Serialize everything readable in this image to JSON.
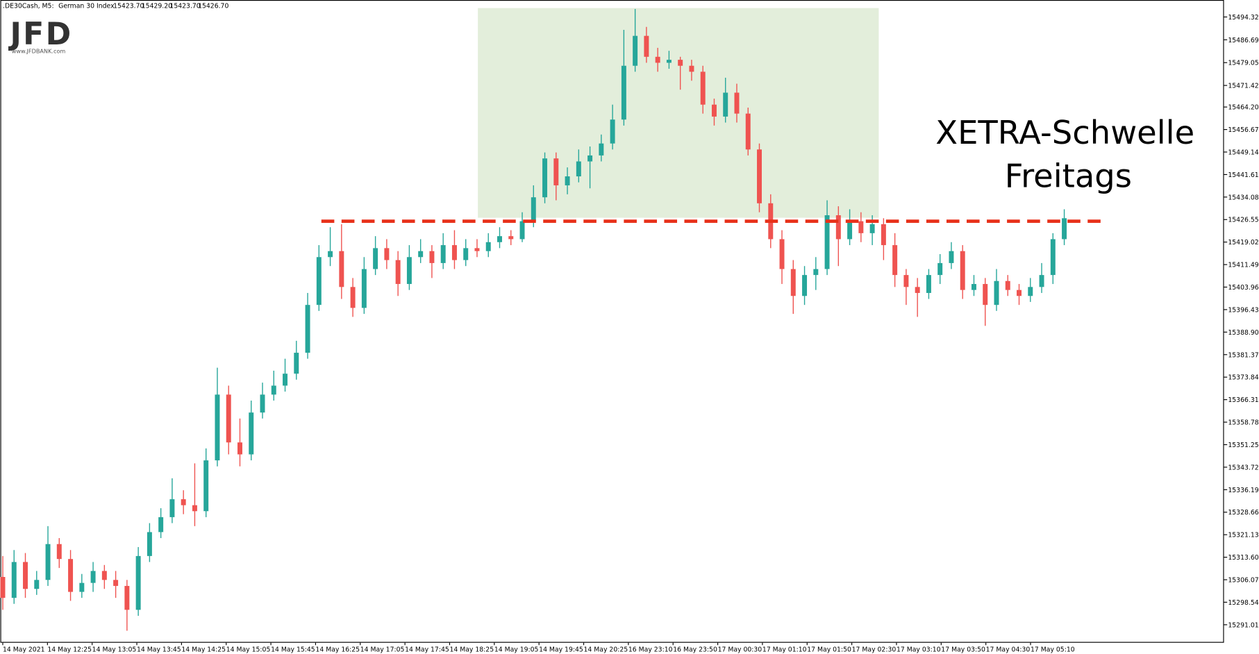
{
  "chart_data": {
    "type": "candlestick",
    "header": {
      "symbol": ".DE30Cash, M5:",
      "name": "German 30 Index",
      "ohlc": [
        "15423.70",
        "15429.20",
        "15423.70",
        "15426.70"
      ]
    },
    "logo": {
      "text": "JFD",
      "url": "www.JFDBANK.com"
    },
    "annotation": [
      "XETRA-Schwelle",
      "Freitags"
    ],
    "level": 15426,
    "level_color": "#e8311a",
    "up_color": "#26a69a",
    "down_color": "#ef5350",
    "ylim": [
      15285,
      15500
    ],
    "yticks": [
      15494.32,
      15486.69,
      15479.05,
      15471.42,
      {
        "value": 15464.2,
        "label": "15464.20"
      },
      15456.67,
      15449.14,
      15441.61,
      15434.08,
      15426.55,
      15419.02,
      15411.49,
      15403.96,
      15396.43,
      {
        "value": 15388.9,
        "label": "15388.90"
      },
      15381.37,
      15373.84,
      15366.31,
      15358.78,
      15351.25,
      15343.72,
      15336.19,
      15328.66,
      15321.13,
      {
        "value": 15313.6,
        "label": "15313.60"
      },
      15306.07,
      15298.54,
      15291.01
    ],
    "x_labels": [
      "14 May 2021",
      "14 May 12:25",
      "14 May 13:05",
      "14 May 13:45",
      "14 May 14:25",
      "14 May 15:05",
      "14 May 15:45",
      "14 May 16:25",
      "14 May 17:05",
      "14 May 17:45",
      "14 May 18:25",
      "14 May 19:05",
      "14 May 19:45",
      "14 May 20:25",
      "16 May 23:10",
      "16 May 23:50",
      "17 May 00:30",
      "17 May 01:10",
      "17 May 01:50",
      "17 May 02:30",
      "17 May 03:10",
      "17 May 03:50",
      "17 May 04:30",
      "17 May 05:10"
    ],
    "candles": [
      [
        15307,
        15314,
        15296,
        15300
      ],
      [
        15300,
        15316,
        15298,
        15312
      ],
      [
        15312,
        15315,
        15300,
        15303
      ],
      [
        15303,
        15309,
        15301,
        15306
      ],
      [
        15306,
        15324,
        15304,
        15318
      ],
      [
        15318,
        15320,
        15310,
        15313
      ],
      [
        15313,
        15316,
        15299,
        15302
      ],
      [
        15302,
        15308,
        15300,
        15305
      ],
      [
        15305,
        15312,
        15302,
        15309
      ],
      [
        15309,
        15311,
        15303,
        15306
      ],
      [
        15306,
        15309,
        15300,
        15304
      ],
      [
        15304,
        15306,
        15289,
        15296
      ],
      [
        15296,
        15317,
        15294,
        15314
      ],
      [
        15314,
        15325,
        15312,
        15322
      ],
      [
        15322,
        15330,
        15320,
        15327
      ],
      [
        15327,
        15340,
        15325,
        15333
      ],
      [
        15333,
        15336,
        15328,
        15331
      ],
      [
        15331,
        15345,
        15324,
        15329
      ],
      [
        15329,
        15350,
        15327,
        15346
      ],
      [
        15346,
        15377,
        15344,
        15368
      ],
      [
        15368,
        15371,
        15348,
        15352
      ],
      [
        15352,
        15360,
        15344,
        15348
      ],
      [
        15348,
        15366,
        15346,
        15362
      ],
      [
        15362,
        15372,
        15360,
        15368
      ],
      [
        15368,
        15376,
        15366,
        15371
      ],
      [
        15371,
        15380,
        15369,
        15375
      ],
      [
        15375,
        15386,
        15373,
        15382
      ],
      [
        15382,
        15402,
        15380,
        15398
      ],
      [
        15398,
        15418,
        15396,
        15414
      ],
      [
        15414,
        15424,
        15411,
        15416
      ],
      [
        15416,
        15425,
        15400,
        15404
      ],
      [
        15404,
        15407,
        15394,
        15397
      ],
      [
        15397,
        15414,
        15395,
        15410
      ],
      [
        15410,
        15421,
        15408,
        15417
      ],
      [
        15417,
        15420,
        15410,
        15413
      ],
      [
        15413,
        15416,
        15401,
        15405
      ],
      [
        15405,
        15418,
        15403,
        15414
      ],
      [
        15414,
        15420,
        15412,
        15416
      ],
      [
        15416,
        15418,
        15407,
        15412
      ],
      [
        15412,
        15422,
        15410,
        15418
      ],
      [
        15418,
        15423,
        15410,
        15413
      ],
      [
        15413,
        15420,
        15411,
        15417
      ],
      [
        15417,
        15420,
        15414,
        15416
      ],
      [
        15416,
        15422,
        15414,
        15419
      ],
      [
        15419,
        15424,
        15417,
        15421
      ],
      [
        15421,
        15423,
        15418,
        15420
      ],
      [
        15420,
        15429,
        15419,
        15426
      ],
      [
        15426,
        15438,
        15424,
        15434
      ],
      [
        15434,
        15449,
        15432,
        15447
      ],
      [
        15447,
        15449,
        15433,
        15438
      ],
      [
        15438,
        15444,
        15435,
        15441
      ],
      [
        15441,
        15450,
        15439,
        15446
      ],
      [
        15446,
        15451,
        15437,
        15448
      ],
      [
        15448,
        15455,
        15446,
        15452
      ],
      [
        15452,
        15465,
        15450,
        15460
      ],
      [
        15460,
        15490,
        15458,
        15478
      ],
      [
        15478,
        15497,
        15476,
        15488
      ],
      [
        15488,
        15491,
        15479,
        15481
      ],
      [
        15481,
        15484,
        15476,
        15479
      ],
      [
        15479,
        15483,
        15477,
        15480
      ],
      [
        15480,
        15481,
        15470,
        15478
      ],
      [
        15478,
        15480,
        15473,
        15476
      ],
      [
        15476,
        15478,
        15462,
        15465
      ],
      [
        15465,
        15467,
        15458,
        15461
      ],
      [
        15461,
        15474,
        15459,
        15469
      ],
      [
        15469,
        15472,
        15459,
        15462
      ],
      [
        15462,
        15464,
        15448,
        15450
      ],
      [
        15450,
        15452,
        15429,
        15432
      ],
      [
        15432,
        15435,
        15417,
        15420
      ],
      [
        15420,
        15423,
        15405,
        15410
      ],
      [
        15410,
        15413,
        15395,
        15401
      ],
      [
        15401,
        15411,
        15398,
        15408
      ],
      [
        15408,
        15414,
        15403,
        15410
      ],
      [
        15410,
        15433,
        15408,
        15428
      ],
      [
        15428,
        15431,
        15411,
        15420
      ],
      [
        15420,
        15430,
        15418,
        15426
      ],
      [
        15426,
        15429,
        15419,
        15422
      ],
      [
        15422,
        15428,
        15418,
        15425
      ],
      [
        15425,
        15427,
        15413,
        15418
      ],
      [
        15418,
        15422,
        15404,
        15408
      ],
      [
        15408,
        15410,
        15398,
        15404
      ],
      [
        15404,
        15407,
        15394,
        15402
      ],
      [
        15402,
        15410,
        15400,
        15408
      ],
      [
        15408,
        15415,
        15405,
        15412
      ],
      [
        15412,
        15419,
        15410,
        15416
      ],
      [
        15416,
        15418,
        15400,
        15403
      ],
      [
        15403,
        15408,
        15401,
        15405
      ],
      [
        15405,
        15407,
        15391,
        15398
      ],
      [
        15398,
        15410,
        15396,
        15406
      ],
      [
        15406,
        15408,
        15401,
        15403
      ],
      [
        15403,
        15405,
        15398,
        15401
      ],
      [
        15401,
        15407,
        15399,
        15404
      ],
      [
        15404,
        15412,
        15402,
        15408
      ],
      [
        15408,
        15422,
        15405,
        15420
      ],
      [
        15420,
        15430,
        15418,
        15427
      ]
    ]
  }
}
